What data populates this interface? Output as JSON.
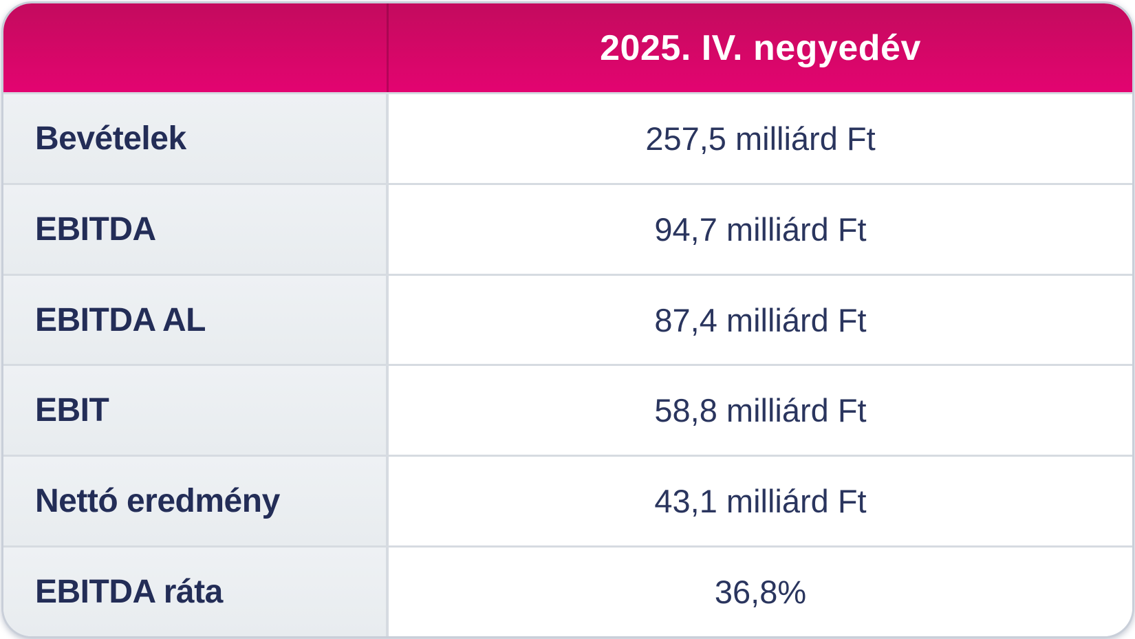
{
  "table": {
    "header": {
      "period_label": "2025. IV. negyedév"
    },
    "rows": [
      {
        "label": "Bevételek",
        "value": "257,5 milliárd Ft"
      },
      {
        "label": "EBITDA",
        "value": "94,7 milliárd Ft"
      },
      {
        "label": "EBITDA AL",
        "value": "87,4 milliárd Ft"
      },
      {
        "label": "EBIT",
        "value": "58,8 milliárd Ft"
      },
      {
        "label": "Nettó eredmény",
        "value": "43,1 milliárd Ft"
      },
      {
        "label": "EBITDA ráta",
        "value": "36,8%"
      }
    ],
    "colors": {
      "header_magenta": "#E20074",
      "header_gradient_top": "#C30B5E",
      "header_text": "#FFFFFF",
      "label_text_navy": "#232D57",
      "value_text_navy": "#2A355E",
      "label_cell_bg": "#E9EDF1",
      "value_cell_bg": "#FFFFFF",
      "grid_line": "#D6DBE1",
      "card_border": "#C9CFD9"
    }
  },
  "chart_data": {
    "type": "table",
    "title": "2025. IV. negyedév",
    "categories": [
      "Bevételek",
      "EBITDA",
      "EBITDA AL",
      "EBIT",
      "Nettó eredmény",
      "EBITDA ráta"
    ],
    "values": [
      257.5,
      94.7,
      87.4,
      58.8,
      43.1,
      36.8
    ],
    "units": [
      "milliárd Ft",
      "milliárd Ft",
      "milliárd Ft",
      "milliárd Ft",
      "milliárd Ft",
      "%"
    ],
    "display_values": [
      "257,5 milliárd Ft",
      "94,7 milliárd Ft",
      "87,4 milliárd Ft",
      "58,8 milliárd Ft",
      "43,1 milliárd Ft",
      "36,8%"
    ]
  }
}
